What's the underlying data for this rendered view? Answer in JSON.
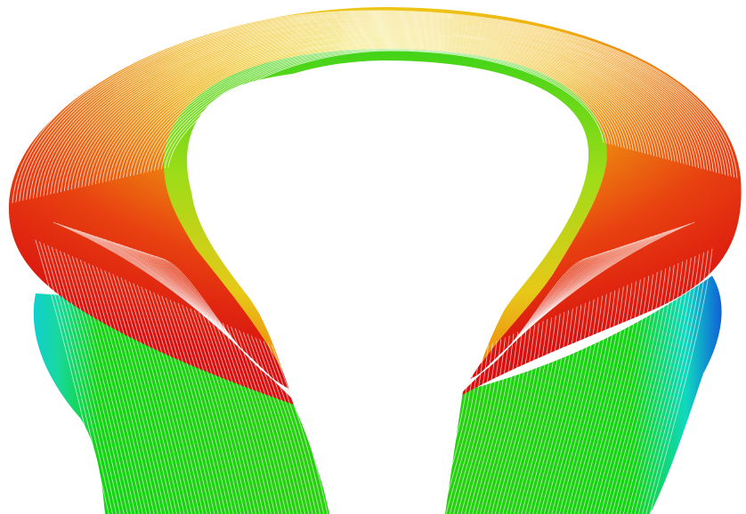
{
  "image": {
    "subject": "field-line-tube-visualization",
    "background": "#ffffff",
    "colors": {
      "red": "#e01010",
      "orange": "#f08a10",
      "yellow": "#e8dc18",
      "green": "#14d414",
      "cyan": "#10d8d0",
      "blue": "#1060d8",
      "line": "#ffffff"
    }
  }
}
